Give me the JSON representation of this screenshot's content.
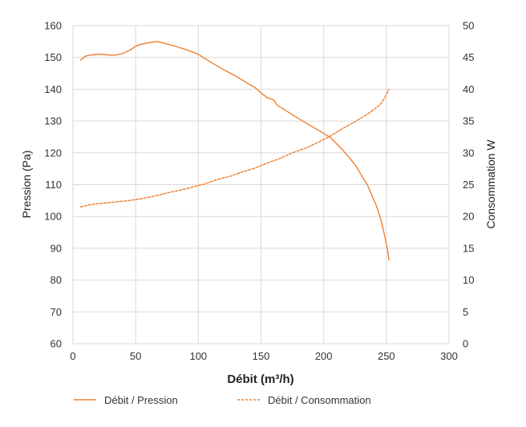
{
  "chart_data": {
    "type": "line",
    "xlabel": "Débit (m³/h)",
    "ylabel": "Pression (Pa)",
    "y2label": "Consommation W",
    "xlim": [
      0,
      300
    ],
    "ylim": [
      60,
      160
    ],
    "y2lim": [
      0,
      50
    ],
    "xticks": [
      "0",
      "50",
      "100",
      "150",
      "200",
      "250",
      "300"
    ],
    "yticks": [
      "60",
      "70",
      "80",
      "90",
      "100",
      "110",
      "120",
      "130",
      "140",
      "150",
      "160"
    ],
    "y2ticks": [
      "0",
      "5",
      "10",
      "15",
      "20",
      "25",
      "30",
      "35",
      "40",
      "45",
      "50"
    ],
    "grid": true,
    "legend_position": "bottom",
    "colors": {
      "series": "#f07f2e",
      "grid": "#d9d9d9"
    },
    "series": [
      {
        "name": "Débit / Pression",
        "axis": "left",
        "style": "solid",
        "x": [
          6,
          10,
          15,
          20,
          25,
          30,
          35,
          40,
          45,
          50,
          53,
          60,
          65,
          68,
          72,
          80,
          90,
          100,
          110,
          120,
          130,
          140,
          145,
          150,
          155,
          160,
          163,
          167,
          175,
          185,
          195,
          205,
          215,
          225,
          235,
          242,
          246,
          249,
          251,
          252
        ],
        "y": [
          149.2,
          150.4,
          150.8,
          151.0,
          150.9,
          150.7,
          150.8,
          151.3,
          152.2,
          153.5,
          154.0,
          154.6,
          154.9,
          155.0,
          154.5,
          153.7,
          152.5,
          151.0,
          148.5,
          146.2,
          144.1,
          141.7,
          140.6,
          138.9,
          137.3,
          136.7,
          135.0,
          134.0,
          132.0,
          129.6,
          127.3,
          124.9,
          121.0,
          116.3,
          109.8,
          103.5,
          98.5,
          93.3,
          89.3,
          86.3
        ]
      },
      {
        "name": "Débit / Consommation",
        "axis": "right",
        "style": "dashed",
        "x": [
          6,
          15,
          25,
          35,
          45,
          55,
          65,
          75,
          85,
          95,
          105,
          115,
          125,
          135,
          145,
          155,
          165,
          175,
          185,
          195,
          205,
          215,
          225,
          235,
          240,
          245,
          248,
          250,
          252
        ],
        "y": [
          21.5,
          21.9,
          22.1,
          22.3,
          22.5,
          22.8,
          23.2,
          23.7,
          24.1,
          24.6,
          25.1,
          25.8,
          26.3,
          27.0,
          27.6,
          28.4,
          29.1,
          30.0,
          30.7,
          31.6,
          32.6,
          33.8,
          34.9,
          36.1,
          36.8,
          37.6,
          38.4,
          39.2,
          40.0
        ]
      }
    ]
  }
}
